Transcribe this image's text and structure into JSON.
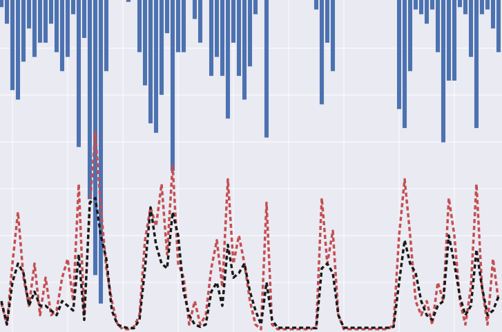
{
  "chart_data": {
    "type": "combo",
    "x": [
      0,
      1,
      2,
      3,
      4,
      5,
      6,
      7,
      8,
      9,
      10,
      11,
      12,
      13,
      14,
      15,
      16,
      17,
      18,
      19,
      20,
      21,
      22,
      23,
      24,
      25,
      26,
      27,
      28,
      29,
      30,
      31,
      32,
      33,
      34,
      35,
      36,
      37,
      38,
      39,
      40,
      41,
      42,
      43,
      44,
      45,
      46,
      47,
      48,
      49,
      50,
      51,
      52,
      53,
      54,
      55,
      56,
      57,
      58,
      59,
      60,
      61,
      62,
      63,
      64,
      65,
      66,
      67,
      68,
      69,
      70,
      71,
      72,
      73,
      74,
      75,
      76,
      77,
      78,
      79,
      80,
      81,
      82,
      83,
      84,
      85,
      86,
      87,
      88,
      89,
      90
    ],
    "xlim": [
      -0.25,
      90.625
    ],
    "xticks": [
      2,
      12,
      22,
      32,
      42,
      52,
      62,
      72,
      82
    ],
    "ylim": [
      -0.06,
      7.03
    ],
    "yticks": [
      1,
      2,
      3,
      4,
      5,
      6
    ],
    "y2lim": [
      0,
      70
    ],
    "y2_inverted": true,
    "grid": true,
    "series": [
      {
        "type": "bar",
        "axis": "y2",
        "color": "#4c72b0",
        "values": [
          1.5,
          5,
          19,
          21,
          13,
          6,
          12,
          9,
          9,
          5,
          11,
          15,
          12,
          3,
          31,
          8,
          42,
          58,
          64,
          15,
          0,
          0,
          0,
          0.4,
          0,
          11,
          18,
          26,
          28,
          20,
          7,
          36,
          11,
          11,
          0,
          4,
          9,
          0,
          16,
          12,
          16,
          25,
          9,
          16,
          21,
          14,
          3,
          0,
          29,
          0,
          0,
          0,
          0,
          0,
          0,
          0,
          0,
          2,
          22,
          9,
          15,
          0,
          0,
          0,
          0,
          0,
          0,
          0,
          0,
          0,
          0,
          0,
          23,
          27,
          15,
          2,
          3,
          5,
          2,
          11,
          30,
          17,
          17,
          1.5,
          3,
          12,
          27,
          3,
          2,
          6,
          11
        ]
      },
      {
        "type": "line",
        "color": "#c44e52",
        "dash": "6,4",
        "width": 3.5,
        "values": [
          0.56,
          0.1,
          1.4,
          2.5,
          1.1,
          0.5,
          1.4,
          0.3,
          1.1,
          0.3,
          0.4,
          1.1,
          1.5,
          0.6,
          3.1,
          0.3,
          2.6,
          4.2,
          2.6,
          1.3,
          0.6,
          0.1,
          0,
          0,
          0.05,
          0.3,
          1.9,
          2.6,
          2.2,
          3.1,
          1.6,
          3.5,
          1.4,
          1.1,
          0.1,
          0.6,
          0.1,
          0.3,
          1.3,
          1.9,
          0.9,
          3.2,
          1.4,
          2.0,
          1.4,
          0.6,
          0.1,
          0,
          2.7,
          0.1,
          0,
          0,
          0,
          0,
          0,
          0,
          0,
          0.05,
          2.8,
          1.4,
          2.1,
          0.3,
          0,
          0,
          0,
          0,
          0,
          0,
          0,
          0,
          0,
          0.1,
          2.0,
          3.2,
          2.0,
          0.6,
          0.3,
          0.6,
          0.1,
          1.0,
          0.6,
          2.8,
          2.0,
          0.6,
          0.1,
          0.9,
          3.1,
          0.9,
          0.1,
          1.5,
          0.6
        ]
      },
      {
        "type": "line",
        "color": "#1a1a1a",
        "dash": "6,4",
        "width": 3.5,
        "values": [
          0.6,
          0.1,
          1.0,
          1.4,
          1.2,
          0.5,
          0.8,
          0.5,
          0.5,
          0.4,
          0.3,
          0.6,
          0.5,
          0.4,
          1.6,
          0.2,
          2.7,
          2.8,
          2.0,
          1.5,
          0.4,
          0.1,
          0.05,
          0.02,
          0.02,
          0.2,
          1.3,
          2.6,
          1.8,
          1.4,
          1.3,
          2.5,
          2.0,
          0.8,
          0.3,
          0.1,
          0.05,
          0.1,
          0.8,
          1.0,
          0.5,
          1.8,
          1.1,
          1.2,
          1.4,
          0.8,
          0.4,
          0.1,
          1.0,
          0.2,
          0.03,
          0.03,
          0.03,
          0.03,
          0.03,
          0.03,
          0.03,
          0.02,
          1.3,
          1.4,
          1.2,
          0.3,
          0.03,
          0.03,
          0.03,
          0.03,
          0.03,
          0.03,
          0.03,
          0.03,
          0.03,
          0.05,
          1.0,
          1.9,
          1.4,
          1.2,
          0.6,
          0.3,
          0.2,
          0.5,
          0.6,
          2.0,
          1.4,
          0.7,
          0.3,
          0.5,
          1.7,
          0.9,
          0.3,
          0.4,
          0.7
        ]
      }
    ]
  }
}
